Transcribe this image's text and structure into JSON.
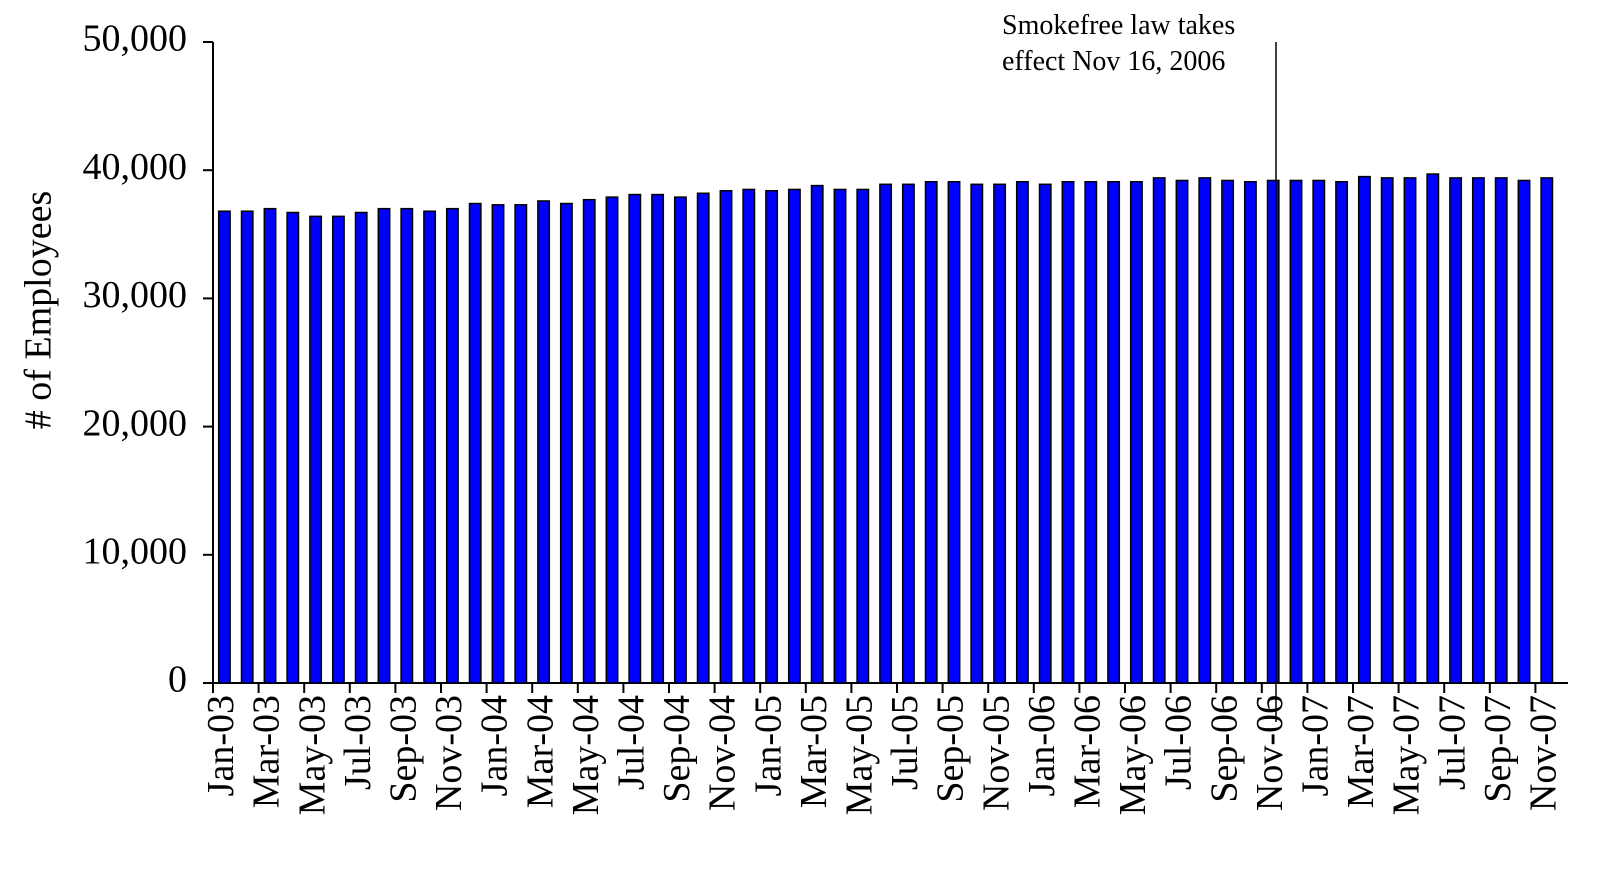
{
  "chart_data": {
    "type": "bar",
    "y_label": "# of Employees",
    "annotation": [
      "Smokefree law takes",
      "effect Nov 16, 2006"
    ],
    "categories": [
      "Jan-03",
      null,
      "Mar-03",
      null,
      "May-03",
      null,
      "Jul-03",
      null,
      "Sep-03",
      null,
      "Nov-03",
      null,
      "Jan-04",
      null,
      "Mar-04",
      null,
      "May-04",
      null,
      "Jul-04",
      null,
      "Sep-04",
      null,
      "Nov-04",
      null,
      "Jan-05",
      null,
      "Mar-05",
      null,
      "May-05",
      null,
      "Jul-05",
      null,
      "Sep-05",
      null,
      "Nov-05",
      null,
      "Jan-06",
      null,
      "Mar-06",
      null,
      "May-06",
      null,
      "Jul-06",
      null,
      "Sep-06",
      null,
      "Nov-06",
      null,
      "Jan-07",
      null,
      "Mar-07",
      null,
      "May-07",
      null,
      "Jul-07",
      null,
      "Sep-07",
      null,
      "Nov-07"
    ],
    "values": [
      36800,
      36800,
      37000,
      36700,
      36400,
      36400,
      36700,
      37000,
      37000,
      36800,
      37000,
      37400,
      37300,
      37300,
      37600,
      37400,
      37700,
      37900,
      38100,
      38100,
      37900,
      38200,
      38400,
      38500,
      38400,
      38500,
      38800,
      38500,
      38500,
      38900,
      38900,
      39100,
      39100,
      38900,
      38900,
      39100,
      38900,
      39100,
      39100,
      39100,
      39100,
      39400,
      39200,
      39400,
      39200,
      39100,
      39200,
      39200,
      39200,
      39100,
      39500,
      39400,
      39400,
      39700,
      39400,
      39400,
      39400,
      39200,
      39400
    ],
    "color": "#0000ff",
    "ylim": [
      0,
      50000
    ],
    "yticks": [
      {
        "value": 0,
        "label": "0"
      },
      {
        "value": 10000,
        "label": "10,000"
      },
      {
        "value": 20000,
        "label": "20,000"
      },
      {
        "value": 30000,
        "label": "30,000"
      },
      {
        "value": 40000,
        "label": "40,000"
      },
      {
        "value": 50000,
        "label": "50,000"
      }
    ],
    "grid": false
  }
}
